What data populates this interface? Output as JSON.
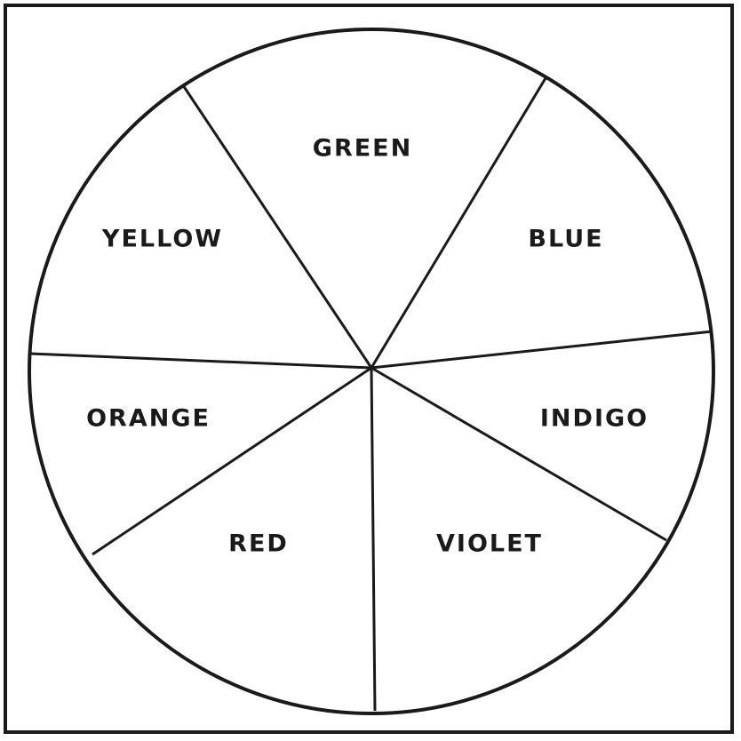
{
  "wheel": {
    "segments": [
      {
        "label": "GREEN"
      },
      {
        "label": "BLUE"
      },
      {
        "label": "INDIGO"
      },
      {
        "label": "VIOLET"
      },
      {
        "label": "RED"
      },
      {
        "label": "ORANGE"
      },
      {
        "label": "YELLOW"
      }
    ]
  },
  "colors": {
    "ink": "#1a1a1a",
    "paper": "#ffffff"
  }
}
